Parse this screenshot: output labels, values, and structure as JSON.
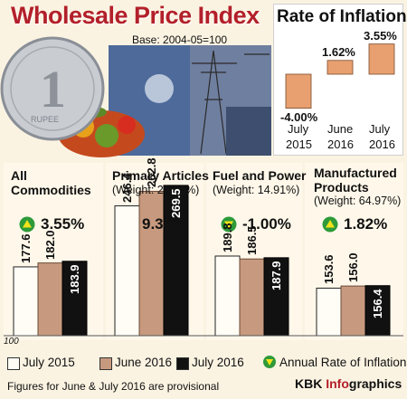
{
  "header": {
    "title": "Wholesale Price Index",
    "base": "Base: 2004-05=100"
  },
  "legend": {
    "annual_rate": "Annual Rate of Inflation"
  },
  "footer": {
    "note": "Figures for June & July 2016 are provisional",
    "credit_a": "KBK ",
    "credit_b": "Info",
    "credit_c": "graphics"
  },
  "colors": {
    "title_red": "#b3202a",
    "july_2015": "#fffdf6",
    "june_2016": "#c79a7f",
    "july_2016": "#111111",
    "rate_bar": "#e8a070",
    "indicator_green": "#2e9a3a",
    "indicator_yellow": "#f2e21a"
  },
  "chart_data": [
    {
      "type": "bar",
      "title": "Wholesale Price Index",
      "ylim": [
        100,
        280
      ],
      "y_floor_label": "100",
      "categories": [
        {
          "name_lines": [
            "All",
            "Commodities"
          ],
          "weight": "",
          "rate": "3.55%",
          "direction": "up"
        },
        {
          "name_lines": [
            "Primary Articles"
          ],
          "weight": "(Weight: 20.12%)",
          "rate": "9.38%",
          "direction": "up"
        },
        {
          "name_lines": [
            "Fuel and Power"
          ],
          "weight": "(Weight: 14.91%)",
          "rate": "-1.00%",
          "direction": "down"
        },
        {
          "name_lines": [
            "Manufactured",
            "Products"
          ],
          "weight": "(Weight: 64.97%)",
          "rate": "1.82%",
          "direction": "up"
        }
      ],
      "series": [
        {
          "name": "July 2015",
          "values": [
            177.6,
            246.4,
            189.8,
            153.6
          ],
          "labels": [
            "177.6",
            "246.4",
            "189.8",
            "153.6"
          ]
        },
        {
          "name": "June 2016",
          "values": [
            182.0,
            262.8,
            186.5,
            156.0
          ],
          "labels": [
            "182.0",
            "262.8",
            "186.5",
            "156.0"
          ]
        },
        {
          "name": "July 2016",
          "values": [
            183.9,
            269.5,
            187.9,
            156.4
          ],
          "labels": [
            "183.9",
            "269.5",
            "187.9",
            "156.4"
          ]
        }
      ]
    },
    {
      "type": "bar",
      "title": "Rate of Inflation",
      "categories": [
        [
          "July",
          "2015"
        ],
        [
          "June",
          "2016"
        ],
        [
          "July",
          "2016"
        ]
      ],
      "values": [
        -4.0,
        1.62,
        3.55
      ],
      "labels": [
        "-4.00%",
        "1.62%",
        "3.55%"
      ]
    }
  ]
}
